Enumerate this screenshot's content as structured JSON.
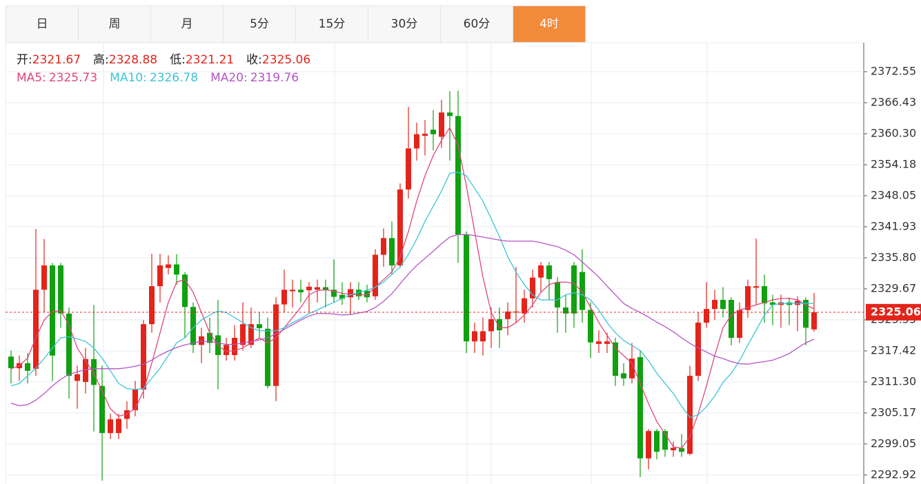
{
  "tabs": {
    "items": [
      "日",
      "周",
      "月",
      "5分",
      "15分",
      "30分",
      "60分",
      "4时"
    ],
    "active": 7
  },
  "chart_data": {
    "type": "candlestick",
    "info": [
      {
        "label": "开:",
        "value": 2321.67
      },
      {
        "label": "高:",
        "value": 2328.88
      },
      {
        "label": "低:",
        "value": 2321.21
      },
      {
        "label": "收:",
        "value": 2325.06
      }
    ],
    "ylim": [
      2291.14,
      2378.27
    ],
    "yticks": [
      2372.55,
      2366.43,
      {
        "value": 2360.3,
        "label": "2360.30"
      },
      2354.18,
      2348.05,
      2341.93,
      {
        "value": 2335.8,
        "label": "2335.80"
      },
      2329.67,
      2323.55,
      2317.42,
      {
        "value": 2311.3,
        "label": "2311.30"
      },
      2305.17,
      2299.05,
      2292.92
    ],
    "grid": true,
    "last_price": 2325.06,
    "up_color": "#e3241b",
    "down_color": "#10a010",
    "open": [
      2316.3,
      2314.0,
      2315.0,
      2313.9,
      2329.5,
      2334.3,
      2334.3,
      2324.8,
      2311.5,
      2311.3,
      2315.8,
      2310.5,
      2301.2,
      2301.2,
      2304.0,
      2305.7,
      2309.8,
      2322.7,
      2330.2,
      2333.8,
      2334.5,
      2332.5,
      2326.1,
      2318.6,
      2321.0,
      2320.5,
      2316.6,
      2316.6,
      2318.6,
      2318.6,
      2322.7,
      2321.8,
      2310.5,
      2326.6,
      2329.2,
      2329.5,
      2329.4,
      2329.5,
      2330.0,
      2329.5,
      2328.5,
      2328.0,
      2329.5,
      2329.3,
      2328.2,
      2336.4,
      2339.7,
      2334.3,
      2349.3,
      2357.4,
      2359.9,
      2361.1,
      2359.7,
      2364.5,
      2363.8,
      2340.4,
      2319.3,
      2319.3,
      2321.3,
      2323.7,
      2323.7,
      2325.0,
      2324.8,
      2327.8,
      2331.9,
      2334.3,
      2331.0,
      2326.0,
      2334.3,
      2333.0,
      2325.5,
      2318.8,
      2318.8,
      2319.1,
      2313.0,
      2312.0,
      2316.2,
      2296.2,
      2301.6,
      2301.6,
      2297.8,
      2298.2,
      2297.1,
      2312.5,
      2323.0,
      2325.7,
      2327.5,
      2327.5,
      2320.0,
      2325.5,
      2329.9,
      2330.2,
      2327.0,
      2326.5,
      2327.0,
      2326.5,
      2327.5,
      2321.67
    ],
    "high": [
      2317.5,
      2316.5,
      2317.0,
      2341.5,
      2339.5,
      2334.8,
      2334.8,
      2326.0,
      2314.5,
      2318.0,
      2326.5,
      2314.5,
      2305.0,
      2305.0,
      2307.5,
      2311.5,
      2323.5,
      2336.6,
      2336.6,
      2336.3,
      2336.5,
      2333.0,
      2327.0,
      2322.0,
      2324.0,
      2327.5,
      2320.0,
      2322.5,
      2327.0,
      2326.0,
      2325.0,
      2324.0,
      2328.0,
      2333.5,
      2331.5,
      2331.5,
      2331.0,
      2331.5,
      2331.5,
      2335.5,
      2331.0,
      2331.0,
      2331.0,
      2330.5,
      2337.5,
      2341.6,
      2343.0,
      2350.5,
      2365.6,
      2362.5,
      2363.0,
      2365.0,
      2367.0,
      2368.7,
      2368.8,
      2341.0,
      2323.0,
      2324.0,
      2326.0,
      2326.0,
      2327.0,
      2334.0,
      2329.5,
      2333.5,
      2335.0,
      2335.0,
      2332.0,
      2328.5,
      2335.0,
      2337.5,
      2327.0,
      2321.5,
      2321.0,
      2320.0,
      2315.0,
      2319.0,
      2317.5,
      2302.0,
      2302.0,
      2302.0,
      2299.5,
      2301.0,
      2314.5,
      2325.0,
      2331.0,
      2329.5,
      2330.0,
      2328.0,
      2327.0,
      2331.5,
      2339.6,
      2332.5,
      2328.5,
      2328.5,
      2328.0,
      2328.2,
      2328.0,
      2328.88
    ],
    "low": [
      2311.0,
      2311.5,
      2311.0,
      2312.5,
      2325.0,
      2311.5,
      2322.0,
      2308.0,
      2306.0,
      2309.0,
      2301.5,
      2291.8,
      2300.0,
      2300.0,
      2302.0,
      2304.5,
      2308.0,
      2321.0,
      2327.0,
      2332.5,
      2330.5,
      2320.0,
      2317.0,
      2315.0,
      2317.0,
      2309.8,
      2315.5,
      2315.5,
      2317.5,
      2318.0,
      2320.0,
      2310.0,
      2307.5,
      2325.0,
      2326.0,
      2327.0,
      2325.0,
      2327.0,
      2326.0,
      2327.0,
      2326.5,
      2324.5,
      2327.5,
      2327.0,
      2327.5,
      2334.0,
      2332.5,
      2333.8,
      2347.5,
      2355.0,
      2356.0,
      2357.0,
      2357.5,
      2355.0,
      2334.8,
      2317.0,
      2317.0,
      2316.5,
      2318.0,
      2318.0,
      2320.5,
      2323.0,
      2323.0,
      2326.0,
      2329.0,
      2327.5,
      2321.0,
      2321.0,
      2322.0,
      2323.0,
      2316.0,
      2317.0,
      2317.0,
      2310.5,
      2310.5,
      2311.0,
      2292.5,
      2294.0,
      2296.0,
      2296.5,
      2296.5,
      2296.5,
      2296.8,
      2311.5,
      2322.0,
      2323.5,
      2324.0,
      2318.5,
      2319.0,
      2324.0,
      2326.5,
      2323.0,
      2322.5,
      2322.0,
      2322.5,
      2321.3,
      2318.5,
      2321.21
    ],
    "close": [
      2314.0,
      2315.0,
      2313.5,
      2329.5,
      2334.3,
      2316.5,
      2324.8,
      2312.5,
      2312.8,
      2315.8,
      2310.7,
      2301.2,
      2303.9,
      2304.0,
      2305.7,
      2309.8,
      2322.7,
      2330.2,
      2334.3,
      2334.5,
      2332.5,
      2326.1,
      2318.6,
      2320.3,
      2319.0,
      2316.6,
      2318.6,
      2320.0,
      2322.7,
      2322.7,
      2321.9,
      2310.5,
      2326.6,
      2329.5,
      2329.5,
      2329.0,
      2330.1,
      2330.0,
      2329.4,
      2328.1,
      2327.7,
      2329.6,
      2328.2,
      2328.0,
      2336.4,
      2339.7,
      2334.3,
      2349.3,
      2357.4,
      2360.2,
      2360.3,
      2360.2,
      2364.5,
      2363.8,
      2340.4,
      2319.3,
      2321.3,
      2321.3,
      2323.7,
      2321.5,
      2325.2,
      2325.2,
      2327.8,
      2331.9,
      2334.3,
      2331.6,
      2326.0,
      2324.8,
      2324.8,
      2325.5,
      2319.1,
      2319.3,
      2319.3,
      2312.5,
      2312.0,
      2315.9,
      2296.2,
      2301.6,
      2297.5,
      2297.9,
      2298.3,
      2297.5,
      2312.5,
      2323.0,
      2325.7,
      2327.5,
      2325.7,
      2320.0,
      2325.5,
      2330.2,
      2330.2,
      2326.8,
      2326.5,
      2327.0,
      2326.5,
      2327.3,
      2322.0,
      2325.06
    ],
    "ma": [
      {
        "name": "MA5:",
        "value": 2325.73,
        "color": "#e0457b",
        "values": [
          2313.9,
          2314.5,
          2316,
          2320,
          2323.5,
          2325.2,
          2325.4,
          2322.5,
          2318,
          2315.5,
          2313,
          2309.5,
          2306,
          2304.5,
          2305,
          2306,
          2309.5,
          2315,
          2321,
          2327,
          2331,
          2331.5,
          2329,
          2325,
          2321,
          2318.5,
          2317.3,
          2317.5,
          2318,
          2319,
          2320,
          2319,
          2320,
          2322,
          2324,
          2326,
          2328.5,
          2329.3,
          2329.5,
          2329.2,
          2328.8,
          2328.6,
          2328.5,
          2328.5,
          2330,
          2331.5,
          2333,
          2336,
          2341,
          2347,
          2352,
          2356,
          2359,
          2361.5,
          2358,
          2350,
          2341,
          2332,
          2325,
          2322,
          2322,
          2323,
          2324.5,
          2326.5,
          2329,
          2330.5,
          2331,
          2331,
          2330.8,
          2329,
          2326,
          2323,
          2320.5,
          2318,
          2316.5,
          2315,
          2311,
          2307,
          2303.5,
          2301,
          2298.5,
          2298.2,
          2300.5,
          2305,
          2310.5,
          2316.5,
          2322,
          2324.5,
          2325.5,
          2326,
          2326.5,
          2327,
          2327.5,
          2327.8,
          2327.8,
          2327.5,
          2326.5,
          2325.73
        ]
      },
      {
        "name": "MA10:",
        "value": 2326.78,
        "color": "#3cc4d6",
        "values": [
          2310.5,
          2311,
          2312.5,
          2314,
          2315.9,
          2318,
          2320,
          2320.2,
          2319.8,
          2319.3,
          2318,
          2316,
          2313.5,
          2311,
          2310,
          2309.8,
          2310,
          2312,
          2314,
          2316.5,
          2319,
          2320,
          2322,
          2323.5,
          2324.5,
          2325.3,
          2325,
          2324,
          2323,
          2322,
          2321.4,
          2321.4,
          2321.4,
          2322,
          2323,
          2323.8,
          2324.8,
          2325.5,
          2326.3,
          2327,
          2327.8,
          2328.5,
          2329,
          2329.4,
          2330,
          2331,
          2332.5,
          2334,
          2336.5,
          2339.5,
          2343,
          2346,
          2349,
          2352.5,
          2352.7,
          2352,
          2349.5,
          2347,
          2343.5,
          2340,
          2336,
          2333,
          2330.5,
          2328.5,
          2327.5,
          2327.5,
          2327.5,
          2328.5,
          2328.9,
          2328.5,
          2327.5,
          2325.5,
          2323,
          2321,
          2319.5,
          2318.5,
          2317.5,
          2315.5,
          2313,
          2311,
          2309,
          2306.5,
          2304.3,
          2304.8,
          2306.4,
          2308.5,
          2311.2,
          2313,
          2315.5,
          2318.6,
          2321.5,
          2324.5,
          2326.5,
          2326.8,
          2326.8,
          2326.8,
          2326.8,
          2326.78
        ]
      },
      {
        "name": "MA20:",
        "value": 2319.76,
        "color": "#b454c4",
        "values": [
          2307.1,
          2306.6,
          2306.8,
          2307.7,
          2309,
          2310.5,
          2311.8,
          2312.8,
          2313.3,
          2313.7,
          2313.9,
          2313.9,
          2313.9,
          2313.9,
          2314.1,
          2314.4,
          2314.8,
          2315.6,
          2316.6,
          2317.4,
          2318.1,
          2318.6,
          2319,
          2319.3,
          2319.3,
          2319,
          2318.7,
          2318.7,
          2319,
          2319.3,
          2319.6,
          2320,
          2320.8,
          2321.7,
          2322.6,
          2323.5,
          2324.3,
          2324.8,
          2324.8,
          2324.7,
          2324.5,
          2324.6,
          2324.9,
          2325.2,
          2326,
          2327.2,
          2328.7,
          2330.7,
          2332.6,
          2334.3,
          2335.7,
          2337.1,
          2338.6,
          2339.9,
          2340.4,
          2340.4,
          2340.2,
          2339.9,
          2339.6,
          2339.3,
          2339.1,
          2339.1,
          2339.1,
          2339.1,
          2338.8,
          2338.4,
          2338,
          2337.3,
          2336.4,
          2335,
          2333.5,
          2332,
          2330.2,
          2328.5,
          2326.8,
          2325.8,
          2325,
          2324.1,
          2323.1,
          2322.2,
          2321.2,
          2320,
          2318.9,
          2318,
          2317.2,
          2316.4,
          2315.9,
          2315.3,
          2314.9,
          2314.8,
          2315.1,
          2315.3,
          2315.6,
          2316.2,
          2316.9,
          2318,
          2319,
          2319.76
        ]
      }
    ]
  }
}
